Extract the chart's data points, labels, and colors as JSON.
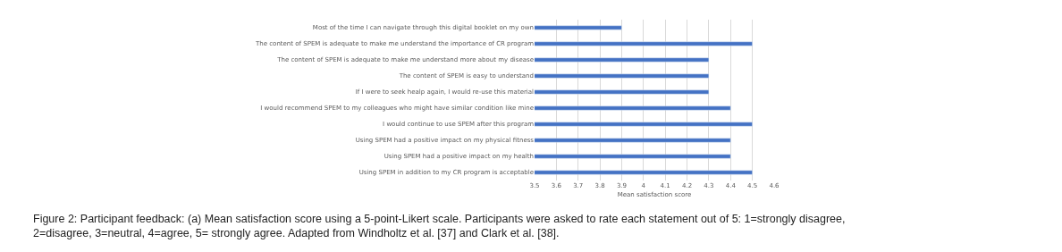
{
  "chart_data": {
    "type": "bar",
    "orientation": "horizontal",
    "xlabel": "Mean satisfaction score",
    "categories": [
      "Most of the time I can navigate through this digital booklet on my own",
      "The content of SPEM is adequate to make me understand the importance of CR program",
      "The content of SPEM is adequate to make me understand more about my disease",
      "The content of SPEM is easy to understand",
      "If I were to seek healp again, I would re-use this material",
      "I would recommend SPEM to my colleagues who might have similar condition like mine",
      "I would continue to use SPEM after this program",
      "Using SPEM had a positive impact on my physical fitness",
      "Using SPEM had a positive impact on my health",
      "Using SPEM in addition to my CR program is acceptable"
    ],
    "values": [
      3.9,
      4.5,
      4.3,
      4.3,
      4.3,
      4.4,
      4.5,
      4.4,
      4.4,
      4.5
    ],
    "color": "#4472c4",
    "xlim": [
      3.5,
      4.6
    ],
    "xticks": [
      3.5,
      3.6,
      3.7,
      3.8,
      3.9,
      4,
      4.1,
      4.2,
      4.3,
      4.4,
      4.5,
      4.6
    ],
    "grid": "x",
    "annotations": [
      "Figure 2: Participant feedback: (a) Mean satisfaction score using a 5-point-Likert scale. Participants were asked to rate each statement out of 5: 1=strongly disagree, 2=disagree, 3=neutral, 4=agree, 5= strongly agree. Adapted from Windholtz et al. [37] and Clark et al. [38]."
    ]
  }
}
